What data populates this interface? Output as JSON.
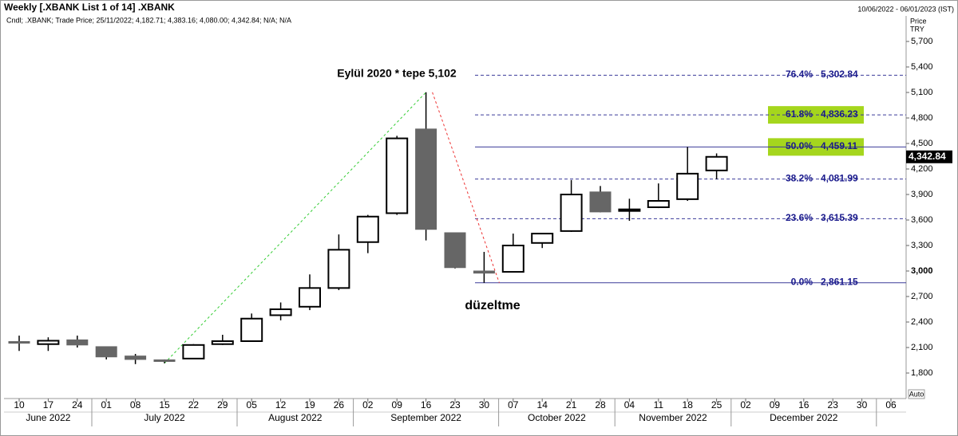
{
  "chart_data": {
    "type": "candlestick",
    "title": "Weekly [.XBANK List 1 of 14] .XBANK",
    "subtitle": "Cndl; .XBANK; Trade Price; 25/11/2022; 4,182.71; 4,383.16; 4,080.00; 4,342.84; N/A; N/A",
    "date_range": "10/06/2022 - 06/01/2023 (IST)",
    "y_label": "Price",
    "currency": "TRY",
    "scale_mode": "Auto",
    "categories": [
      "10",
      "17",
      "24",
      "01",
      "08",
      "15",
      "22",
      "29",
      "05",
      "12",
      "19",
      "26",
      "02",
      "09",
      "16",
      "23",
      "30",
      "07",
      "14",
      "21",
      "28",
      "04",
      "11",
      "18",
      "25",
      "02",
      "09",
      "16",
      "23",
      "30",
      "06"
    ],
    "months": [
      "June 2022",
      "July 2022",
      "August 2022",
      "September 2022",
      "October 2022",
      "November 2022",
      "December 2022"
    ],
    "open": [
      2170,
      2140,
      2190,
      2110,
      2000,
      1955,
      1970,
      2140,
      2175,
      2480,
      2580,
      2800,
      3340,
      3680,
      4670,
      3450,
      3000,
      2990,
      3330,
      3470,
      3930,
      3720,
      3750,
      3845,
      4182.71,
      null,
      null,
      null,
      null,
      null,
      null
    ],
    "high": [
      2240,
      2220,
      2240,
      2110,
      2025,
      1960,
      2140,
      2250,
      2500,
      2630,
      2960,
      3430,
      3660,
      4590,
      5102,
      3450,
      3225,
      3440,
      3440,
      4070,
      4000,
      3850,
      4030,
      4459,
      4383.16,
      null,
      null,
      null,
      null,
      null,
      null
    ],
    "low": [
      2060,
      2060,
      2100,
      1960,
      1905,
      1915,
      1965,
      2130,
      2170,
      2420,
      2540,
      2775,
      3210,
      3660,
      3360,
      3030,
      2861,
      2985,
      3270,
      3460,
      3690,
      3590,
      3740,
      3825,
      4080.0,
      null,
      null,
      null,
      null,
      null,
      null
    ],
    "close": [
      2160,
      2180,
      2130,
      1990,
      1960,
      1950,
      2130,
      2175,
      2440,
      2550,
      2800,
      3250,
      3640,
      4560,
      3490,
      3040,
      2975,
      3300,
      3440,
      3900,
      3695,
      3725,
      3825,
      4145,
      4342.84,
      null,
      null,
      null,
      null,
      null,
      null
    ],
    "up_color": "#ffffff",
    "down_color": "#666666",
    "ylim": [
      1500,
      6000
    ],
    "yticks": [
      {
        "value": 1800,
        "label": "1,800"
      },
      {
        "value": 2100,
        "label": "2,100"
      },
      {
        "value": 2400,
        "label": "2,400"
      },
      {
        "value": 2700,
        "label": "2,700"
      },
      {
        "value": 3000,
        "label": "3,000"
      },
      {
        "value": 3300,
        "label": "3,300"
      },
      {
        "value": 3600,
        "label": "3,600"
      },
      {
        "value": 3900,
        "label": "3,900"
      },
      {
        "value": 4200,
        "label": "4,200"
      },
      {
        "value": 4500,
        "label": "4,500"
      },
      {
        "value": 4800,
        "label": "4,800"
      },
      {
        "value": 5100,
        "label": "5,100"
      },
      {
        "value": 5400,
        "label": "5,400"
      },
      {
        "value": 5700,
        "label": "5,700"
      }
    ],
    "last_price": {
      "value": 4342.84,
      "label": "4,342.84"
    },
    "fib_levels": [
      {
        "ratio": "76.4%",
        "value": 5302.84,
        "label": "5,302.84",
        "dashed": true,
        "highlight": false
      },
      {
        "ratio": "61.8%",
        "value": 4836.23,
        "label": "4,836.23",
        "dashed": true,
        "highlight": true
      },
      {
        "ratio": "50.0%",
        "value": 4459.11,
        "label": "4,459.11",
        "dashed": false,
        "highlight": true
      },
      {
        "ratio": "38.2%",
        "value": 4081.99,
        "label": "4,081.99",
        "dashed": true,
        "highlight": false
      },
      {
        "ratio": "23.6%",
        "value": 3615.39,
        "label": "3,615.39",
        "dashed": true,
        "highlight": false
      },
      {
        "ratio": "0.0%",
        "value": 2861.15,
        "label": "2,861.15",
        "dashed": false,
        "highlight": false
      }
    ],
    "annotations": [
      "Eylül 2020 * tepe 5,102",
      "düzeltme"
    ]
  }
}
